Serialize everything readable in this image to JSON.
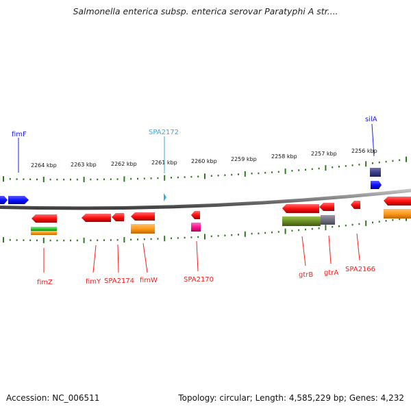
{
  "title": "Salmonella enterica subsp. enterica serovar Paratyphi A str....",
  "footer": {
    "accession": "Accession: NC_006511",
    "summary": "Topology: circular; Length: 4,585,229 bp; Genes: 4,232"
  },
  "colors": {
    "backbone": "#808080",
    "tick": "#2d7a1f",
    "forward_gene": "#1a1aff",
    "reverse_gene": "#ff1a1a",
    "highlight_label": "#33aadd"
  },
  "scale": {
    "ticks": [
      {
        "label": "2264 kbp"
      },
      {
        "label": "2263 kbp"
      },
      {
        "label": "2262 kbp"
      },
      {
        "label": "2261 kbp"
      },
      {
        "label": "2260 kbp"
      },
      {
        "label": "2259 kbp"
      },
      {
        "label": "2258 kbp"
      },
      {
        "label": "2257 kbp"
      },
      {
        "label": "2256 kbp"
      }
    ]
  },
  "gene_labels": [
    {
      "name": "fimF",
      "strand": "forward"
    },
    {
      "name": "SPA2172",
      "strand": "forward",
      "highlight": true
    },
    {
      "name": "silA",
      "strand": "forward"
    },
    {
      "name": "fimZ",
      "strand": "reverse"
    },
    {
      "name": "fimY",
      "strand": "reverse"
    },
    {
      "name": "SPA2174",
      "strand": "reverse"
    },
    {
      "name": "fimW",
      "strand": "reverse"
    },
    {
      "name": "SPA2170",
      "strand": "reverse"
    },
    {
      "name": "gtrB",
      "strand": "reverse"
    },
    {
      "name": "gtrA",
      "strand": "reverse"
    },
    {
      "name": "SPA2166",
      "strand": "reverse"
    }
  ]
}
